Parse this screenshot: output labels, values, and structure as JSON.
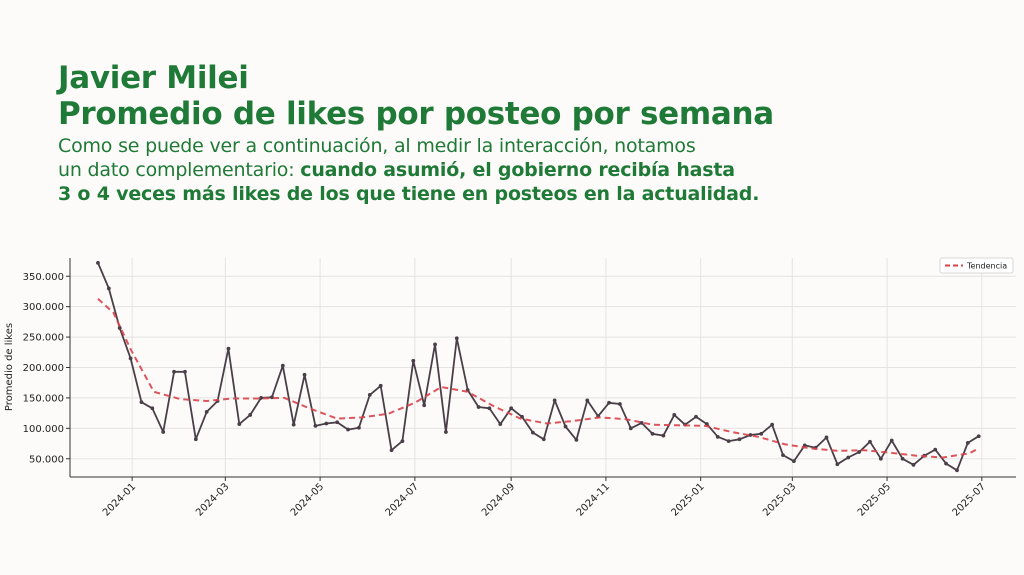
{
  "header": {
    "title_line1": "Javier Milei",
    "title_line2": "Promedio de likes por posteo por semana",
    "subtitle_line1": "Como se puede ver a continuación, al medir la interacción, notamos",
    "subtitle_line2_regular": "un dato complementario: ",
    "subtitle_line2_bold": "cuando asumió, el gobierno recibía hasta",
    "subtitle_line3_bold": "3 o 4 veces más likes de los que tiene en posteos en la actualidad."
  },
  "colors": {
    "title": "#1f7a37",
    "series_line": "#4a3f48",
    "trend_line": "#d9424a",
    "background": "#fdfbf9"
  },
  "chart_data": {
    "type": "line",
    "title": "",
    "xlabel": "",
    "ylabel": "Promedio de likes",
    "ylim": [
      20000,
      380000
    ],
    "yticks": [
      50000,
      100000,
      150000,
      200000,
      250000,
      300000,
      350000
    ],
    "ytick_labels": [
      "50.000",
      "100.000",
      "150.000",
      "200.000",
      "250.000",
      "300.000",
      "350.000"
    ],
    "xlim": [
      "2023-11-22",
      "2025-07-23"
    ],
    "xticks": [
      "2024-01-01",
      "2024-03-01",
      "2024-05-01",
      "2024-07-01",
      "2024-09-01",
      "2024-11-01",
      "2025-01-01",
      "2025-03-01",
      "2025-05-01",
      "2025-07-01"
    ],
    "xtick_labels": [
      "2024-01",
      "2024-03",
      "2024-05",
      "2024-07",
      "2024-09",
      "2024-11",
      "2025-01",
      "2025-03",
      "2025-05",
      "2025-07"
    ],
    "grid": true,
    "legend": {
      "position": "top-right",
      "entries": [
        "Tendencia"
      ]
    },
    "series": [
      {
        "style": "solid",
        "points": [
          [
            "2023-12-10",
            372000
          ],
          [
            "2023-12-17",
            330000
          ],
          [
            "2023-12-24",
            265000
          ],
          [
            "2023-12-31",
            215000
          ],
          [
            "2024-01-07",
            143000
          ],
          [
            "2024-01-14",
            133000
          ],
          [
            "2024-01-21",
            94000
          ],
          [
            "2024-01-28",
            193000
          ],
          [
            "2024-02-04",
            193000
          ],
          [
            "2024-02-11",
            82000
          ],
          [
            "2024-02-18",
            127000
          ],
          [
            "2024-02-25",
            145000
          ],
          [
            "2024-03-03",
            231000
          ],
          [
            "2024-03-10",
            107000
          ],
          [
            "2024-03-17",
            122000
          ],
          [
            "2024-03-24",
            150000
          ],
          [
            "2024-03-31",
            151000
          ],
          [
            "2024-04-07",
            203000
          ],
          [
            "2024-04-14",
            106000
          ],
          [
            "2024-04-21",
            188000
          ],
          [
            "2024-04-28",
            104000
          ],
          [
            "2024-05-05",
            108000
          ],
          [
            "2024-05-12",
            110000
          ],
          [
            "2024-05-19",
            98000
          ],
          [
            "2024-05-26",
            101000
          ],
          [
            "2024-06-02",
            155000
          ],
          [
            "2024-06-09",
            170000
          ],
          [
            "2024-06-16",
            64000
          ],
          [
            "2024-06-23",
            79000
          ],
          [
            "2024-06-30",
            211000
          ],
          [
            "2024-07-07",
            138000
          ],
          [
            "2024-07-14",
            238000
          ],
          [
            "2024-07-21",
            94000
          ],
          [
            "2024-07-28",
            248000
          ],
          [
            "2024-08-04",
            163000
          ],
          [
            "2024-08-11",
            135000
          ],
          [
            "2024-08-18",
            133000
          ],
          [
            "2024-08-25",
            107000
          ],
          [
            "2024-09-01",
            133000
          ],
          [
            "2024-09-08",
            119000
          ],
          [
            "2024-09-15",
            93000
          ],
          [
            "2024-09-22",
            82000
          ],
          [
            "2024-09-29",
            146000
          ],
          [
            "2024-10-06",
            103000
          ],
          [
            "2024-10-13",
            81000
          ],
          [
            "2024-10-20",
            146000
          ],
          [
            "2024-10-27",
            120000
          ],
          [
            "2024-11-03",
            142000
          ],
          [
            "2024-11-10",
            140000
          ],
          [
            "2024-11-17",
            100000
          ],
          [
            "2024-11-24",
            109000
          ],
          [
            "2024-12-01",
            91000
          ],
          [
            "2024-12-08",
            88000
          ],
          [
            "2024-12-15",
            122000
          ],
          [
            "2024-12-22",
            106000
          ],
          [
            "2024-12-29",
            119000
          ],
          [
            "2025-01-05",
            107000
          ],
          [
            "2025-01-12",
            86000
          ],
          [
            "2025-01-19",
            79000
          ],
          [
            "2025-01-26",
            82000
          ],
          [
            "2025-02-02",
            89000
          ],
          [
            "2025-02-09",
            91000
          ],
          [
            "2025-02-16",
            106000
          ],
          [
            "2025-02-23",
            56000
          ],
          [
            "2025-03-02",
            46000
          ],
          [
            "2025-03-09",
            72000
          ],
          [
            "2025-03-16",
            68000
          ],
          [
            "2025-03-23",
            85000
          ],
          [
            "2025-03-30",
            41000
          ],
          [
            "2025-04-06",
            52000
          ],
          [
            "2025-04-13",
            61000
          ],
          [
            "2025-04-20",
            78000
          ],
          [
            "2025-04-27",
            50000
          ],
          [
            "2025-05-04",
            80000
          ],
          [
            "2025-05-11",
            50000
          ],
          [
            "2025-05-18",
            40000
          ],
          [
            "2025-05-25",
            55000
          ],
          [
            "2025-06-01",
            65000
          ],
          [
            "2025-06-08",
            42000
          ],
          [
            "2025-06-15",
            31000
          ],
          [
            "2025-06-22",
            76000
          ],
          [
            "2025-06-29",
            87000
          ]
        ]
      },
      {
        "name": "Tendencia",
        "style": "dashed",
        "points": [
          [
            "2023-12-10",
            313000
          ],
          [
            "2023-12-20",
            290000
          ],
          [
            "2023-12-31",
            230000
          ],
          [
            "2024-01-15",
            160000
          ],
          [
            "2024-02-01",
            148000
          ],
          [
            "2024-02-18",
            145000
          ],
          [
            "2024-03-05",
            149000
          ],
          [
            "2024-03-22",
            149000
          ],
          [
            "2024-04-08",
            150000
          ],
          [
            "2024-04-25",
            132000
          ],
          [
            "2024-05-12",
            116000
          ],
          [
            "2024-05-28",
            118000
          ],
          [
            "2024-06-14",
            124000
          ],
          [
            "2024-07-01",
            142000
          ],
          [
            "2024-07-18",
            168000
          ],
          [
            "2024-08-04",
            160000
          ],
          [
            "2024-08-21",
            136000
          ],
          [
            "2024-09-07",
            116000
          ],
          [
            "2024-09-24",
            108000
          ],
          [
            "2024-10-11",
            112000
          ],
          [
            "2024-10-28",
            118000
          ],
          [
            "2024-11-14",
            115000
          ],
          [
            "2024-12-01",
            106000
          ],
          [
            "2024-12-18",
            105000
          ],
          [
            "2025-01-04",
            104000
          ],
          [
            "2025-01-21",
            94000
          ],
          [
            "2025-02-07",
            86000
          ],
          [
            "2025-02-24",
            74000
          ],
          [
            "2025-03-13",
            67000
          ],
          [
            "2025-03-30",
            63000
          ],
          [
            "2025-04-16",
            64000
          ],
          [
            "2025-05-03",
            60000
          ],
          [
            "2025-05-20",
            55000
          ],
          [
            "2025-06-06",
            52000
          ],
          [
            "2025-06-23",
            59000
          ],
          [
            "2025-06-29",
            67000
          ]
        ]
      }
    ]
  }
}
